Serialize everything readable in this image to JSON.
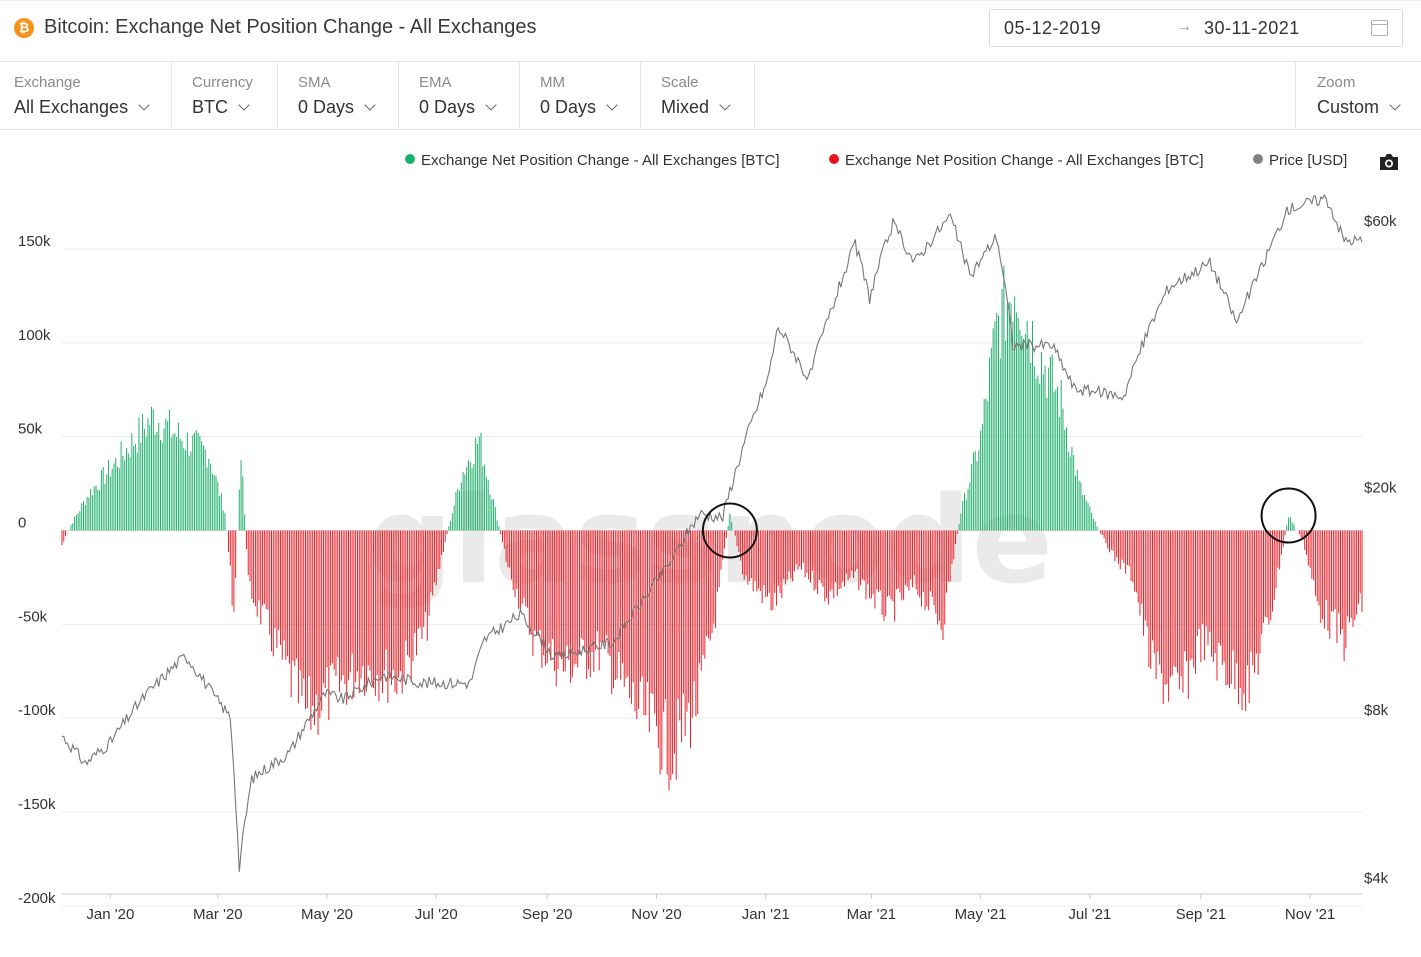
{
  "header": {
    "coin_symbol": "₿",
    "title": "Bitcoin: Exchange Net Position Change - All Exchanges",
    "date_start": "05-12-2019",
    "date_arrow": "→",
    "date_end": "30-11-2021"
  },
  "controls": [
    {
      "label": "Exchange",
      "value": "All Exchanges"
    },
    {
      "label": "Currency",
      "value": "BTC"
    },
    {
      "label": "SMA",
      "value": "0 Days"
    },
    {
      "label": "EMA",
      "value": "0 Days"
    },
    {
      "label": "MM",
      "value": "0 Days"
    },
    {
      "label": "Scale",
      "value": "Mixed"
    },
    {
      "label": "Zoom",
      "value": "Custom"
    }
  ],
  "legend": [
    {
      "label": "Exchange Net Position Change - All Exchanges [BTC]",
      "color": "#16b36e"
    },
    {
      "label": "Exchange Net Position Change - All Exchanges [BTC]",
      "color": "#e8141b"
    },
    {
      "label": "Price [USD]",
      "color": "#808080"
    }
  ],
  "colors": {
    "positive": "#1fae6b",
    "negative": "#e62028",
    "price": "#777777",
    "grid": "#ececec"
  },
  "chart_data": {
    "type": "bar",
    "watermark": "glassnode",
    "left_axis": {
      "ticks": [
        150000,
        100000,
        50000,
        0,
        -50000,
        -100000,
        -150000,
        -200000
      ],
      "labels": [
        "150k",
        "100k",
        "50k",
        "0",
        "-50k",
        "-100k",
        "-150k",
        "-200k"
      ],
      "range": [
        -200000,
        150000
      ]
    },
    "right_axis": {
      "scale": "log",
      "ticks": [
        60000,
        20000,
        8000,
        4000
      ],
      "labels": [
        "$60k",
        "$20k",
        "$8k",
        "$4k"
      ]
    },
    "x_axis": {
      "start": "2019-12-05",
      "end": "2021-11-30",
      "ticks": [
        "2020-01-01",
        "2020-03-01",
        "2020-05-01",
        "2020-07-01",
        "2020-09-01",
        "2020-11-01",
        "2021-01-01",
        "2021-03-01",
        "2021-05-01",
        "2021-07-01",
        "2021-09-01",
        "2021-11-01"
      ],
      "labels": [
        "Jan '20",
        "Mar '20",
        "May '20",
        "Jul '20",
        "Sep '20",
        "Nov '20",
        "Jan '21",
        "Mar '21",
        "May '21",
        "Jul '21",
        "Sep '21",
        "Nov '21"
      ]
    },
    "net_position_change_anchors": [
      [
        "2019-12-05",
        -8000
      ],
      [
        "2019-12-10",
        3000
      ],
      [
        "2019-12-20",
        20000
      ],
      [
        "2020-01-05",
        38000
      ],
      [
        "2020-01-25",
        62000
      ],
      [
        "2020-02-10",
        50000
      ],
      [
        "2020-02-25",
        42000
      ],
      [
        "2020-03-05",
        10000
      ],
      [
        "2020-03-10",
        -45000
      ],
      [
        "2020-03-14",
        45000
      ],
      [
        "2020-03-18",
        -30000
      ],
      [
        "2020-04-01",
        -60000
      ],
      [
        "2020-04-20",
        -100000
      ],
      [
        "2020-05-01",
        -90000
      ],
      [
        "2020-05-20",
        -75000
      ],
      [
        "2020-06-10",
        -80000
      ],
      [
        "2020-06-25",
        -55000
      ],
      [
        "2020-07-05",
        -10000
      ],
      [
        "2020-07-15",
        30000
      ],
      [
        "2020-07-25",
        50000
      ],
      [
        "2020-08-01",
        20000
      ],
      [
        "2020-08-10",
        -20000
      ],
      [
        "2020-08-25",
        -60000
      ],
      [
        "2020-09-10",
        -75000
      ],
      [
        "2020-10-01",
        -65000
      ],
      [
        "2020-10-20",
        -95000
      ],
      [
        "2020-11-10",
        -120000
      ],
      [
        "2020-11-25",
        -90000
      ],
      [
        "2020-12-05",
        -40000
      ],
      [
        "2020-12-12",
        10000
      ],
      [
        "2020-12-20",
        -25000
      ],
      [
        "2021-01-05",
        -40000
      ],
      [
        "2021-01-20",
        -20000
      ],
      [
        "2021-02-05",
        -35000
      ],
      [
        "2021-02-20",
        -25000
      ],
      [
        "2021-03-10",
        -45000
      ],
      [
        "2021-03-25",
        -30000
      ],
      [
        "2021-04-10",
        -50000
      ],
      [
        "2021-04-20",
        10000
      ],
      [
        "2021-05-01",
        50000
      ],
      [
        "2021-05-10",
        110000
      ],
      [
        "2021-05-20",
        135000
      ],
      [
        "2021-06-01",
        100000
      ],
      [
        "2021-06-15",
        70000
      ],
      [
        "2021-06-25",
        25000
      ],
      [
        "2021-07-05",
        2000
      ],
      [
        "2021-07-15",
        -15000
      ],
      [
        "2021-07-25",
        -25000
      ],
      [
        "2021-08-05",
        -75000
      ],
      [
        "2021-08-20",
        -90000
      ],
      [
        "2021-09-01",
        -60000
      ],
      [
        "2021-09-15",
        -75000
      ],
      [
        "2021-09-28",
        -85000
      ],
      [
        "2021-10-10",
        -45000
      ],
      [
        "2021-10-20",
        8000
      ],
      [
        "2021-10-28",
        -5000
      ],
      [
        "2021-11-05",
        -40000
      ],
      [
        "2021-11-20",
        -60000
      ],
      [
        "2021-11-30",
        -40000
      ]
    ],
    "price_anchors": [
      [
        "2019-12-05",
        7400
      ],
      [
        "2019-12-18",
        6600
      ],
      [
        "2020-01-01",
        7200
      ],
      [
        "2020-01-20",
        8700
      ],
      [
        "2020-02-12",
        10300
      ],
      [
        "2020-02-28",
        8700
      ],
      [
        "2020-03-08",
        8000
      ],
      [
        "2020-03-12",
        4900
      ],
      [
        "2020-03-13",
        4300
      ],
      [
        "2020-03-20",
        6200
      ],
      [
        "2020-04-10",
        6900
      ],
      [
        "2020-04-30",
        8800
      ],
      [
        "2020-05-10",
        8600
      ],
      [
        "2020-06-01",
        9500
      ],
      [
        "2020-06-25",
        9200
      ],
      [
        "2020-07-20",
        9200
      ],
      [
        "2020-07-28",
        11000
      ],
      [
        "2020-08-17",
        12200
      ],
      [
        "2020-09-05",
        10200
      ],
      [
        "2020-10-08",
        10900
      ],
      [
        "2020-10-25",
        13000
      ],
      [
        "2020-11-10",
        15300
      ],
      [
        "2020-11-25",
        18500
      ],
      [
        "2020-12-08",
        18200
      ],
      [
        "2020-12-17",
        23000
      ],
      [
        "2021-01-02",
        32000
      ],
      [
        "2021-01-08",
        40000
      ],
      [
        "2021-01-25",
        32000
      ],
      [
        "2021-02-08",
        44000
      ],
      [
        "2021-02-20",
        56000
      ],
      [
        "2021-02-28",
        45000
      ],
      [
        "2021-03-13",
        61000
      ],
      [
        "2021-03-25",
        52000
      ],
      [
        "2021-04-14",
        63000
      ],
      [
        "2021-04-25",
        49000
      ],
      [
        "2021-05-10",
        58000
      ],
      [
        "2021-05-19",
        37000
      ],
      [
        "2021-06-10",
        37000
      ],
      [
        "2021-06-22",
        31000
      ],
      [
        "2021-07-20",
        30000
      ],
      [
        "2021-08-14",
        47000
      ],
      [
        "2021-09-06",
        52000
      ],
      [
        "2021-09-21",
        40500
      ],
      [
        "2021-10-05",
        51000
      ],
      [
        "2021-10-20",
        65000
      ],
      [
        "2021-11-10",
        68000
      ],
      [
        "2021-11-20",
        57000
      ],
      [
        "2021-11-30",
        57000
      ]
    ],
    "annotations": [
      {
        "shape": "circle",
        "date": "2020-12-12",
        "value": 0
      },
      {
        "shape": "circle",
        "date": "2021-10-20",
        "value": 8000
      }
    ],
    "grid": true
  }
}
